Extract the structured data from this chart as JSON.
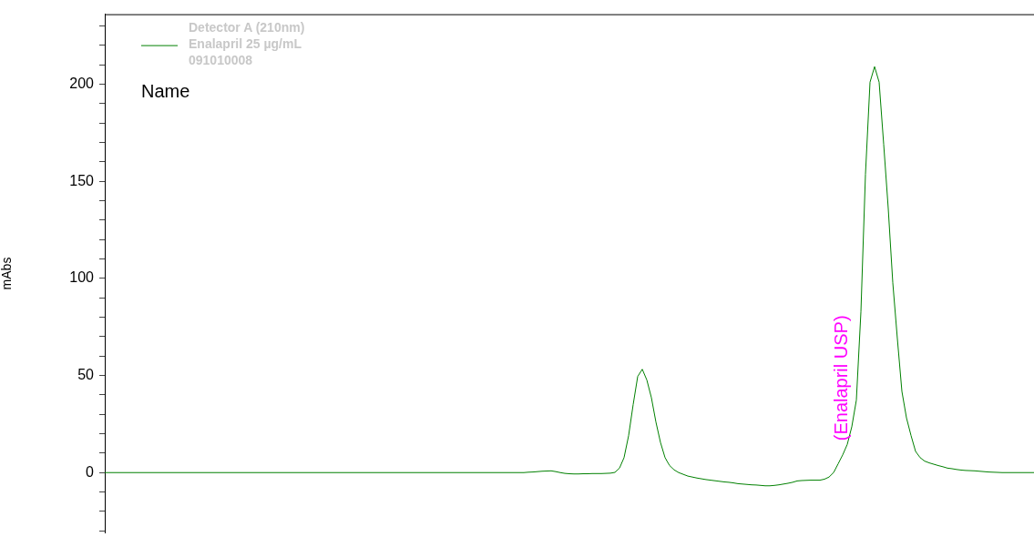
{
  "chart_data": {
    "type": "line",
    "tick_labels": "y",
    "ylabel": "mAbs",
    "legend": "top left",
    "marker": "none",
    "line_style": "solid",
    "grid": false,
    "ylim": [
      -31,
      236
    ],
    "yticks": [
      {
        "value": -30,
        "label": null
      },
      {
        "value": -20,
        "label": null
      },
      {
        "value": -10,
        "label": null
      },
      0,
      {
        "value": 10,
        "label": null
      },
      {
        "value": 20,
        "label": null
      },
      {
        "value": 30,
        "label": null
      },
      {
        "value": 40,
        "label": null
      },
      50,
      {
        "value": 60,
        "label": null
      },
      {
        "value": 70,
        "label": null
      },
      {
        "value": 80,
        "label": null
      },
      {
        "value": 90,
        "label": null
      },
      100,
      {
        "value": 110,
        "label": null
      },
      {
        "value": 120,
        "label": null
      },
      {
        "value": 130,
        "label": null
      },
      {
        "value": 140,
        "label": null
      },
      150,
      {
        "value": 160,
        "label": null
      },
      {
        "value": 170,
        "label": null
      },
      {
        "value": 180,
        "label": null
      },
      {
        "value": 190,
        "label": null
      },
      200,
      {
        "value": 210,
        "label": null
      },
      {
        "value": 220,
        "label": null
      },
      {
        "value": 230,
        "label": null
      }
    ],
    "annotations": [
      "Name",
      "(Enalapril USP)"
    ],
    "categories": [
      null,
      null,
      null,
      null,
      null,
      null,
      null,
      null,
      null,
      null,
      null,
      null,
      null,
      null,
      null,
      null,
      null,
      null,
      null,
      null,
      null,
      null,
      null,
      null,
      null,
      null,
      null,
      null,
      null,
      null,
      null,
      null,
      null,
      null,
      null,
      null,
      null,
      null,
      null,
      null,
      null,
      null,
      null,
      null,
      null,
      null,
      null,
      null,
      null,
      null,
      null,
      null,
      null,
      null,
      null,
      null,
      null,
      null,
      null,
      null,
      null,
      null,
      null,
      null,
      null,
      null,
      null,
      null,
      null,
      null,
      null,
      null,
      null,
      null,
      null,
      null,
      null,
      null,
      null,
      null,
      null,
      null,
      null,
      null,
      null,
      null,
      null,
      null,
      null,
      null,
      null,
      null,
      null,
      null,
      null,
      null,
      null,
      null,
      null,
      null,
      null,
      null,
      null,
      null,
      null,
      null,
      null,
      null,
      null,
      null,
      null,
      null,
      null,
      null,
      null,
      null,
      null,
      null,
      null,
      null,
      null,
      null,
      null,
      null,
      null,
      null,
      null,
      null,
      null,
      null,
      null,
      null,
      null,
      null,
      null,
      null,
      null,
      null,
      null,
      null,
      null,
      null,
      null,
      null,
      null,
      null,
      null,
      null,
      null,
      null,
      null,
      null,
      null,
      null,
      null,
      null,
      null,
      null,
      null,
      null,
      null,
      null,
      null,
      null,
      null,
      null,
      null,
      null,
      null,
      null,
      null,
      null,
      null,
      null,
      null,
      null,
      null,
      null,
      null,
      null,
      null,
      null,
      null,
      null,
      null,
      null,
      null,
      null,
      null,
      null,
      null,
      null,
      null,
      null,
      null,
      null,
      null,
      null,
      null,
      null,
      null,
      null,
      null,
      null,
      null
    ],
    "series": [
      {
        "name": "Detector A (210nm)\nEnalapril 25 µg/mL\n091010008",
        "color": "#008000",
        "values": [
          0,
          0,
          0,
          0,
          0,
          0,
          0,
          0,
          0,
          0,
          0,
          0,
          0,
          0,
          0,
          0,
          0,
          0,
          0,
          0,
          0,
          0,
          0,
          0,
          0,
          0,
          0,
          0,
          0,
          0,
          0,
          0,
          0,
          0,
          0,
          0,
          0,
          0,
          0,
          0,
          0,
          0,
          0,
          0,
          0,
          0,
          0,
          0,
          0,
          0,
          0,
          0,
          0,
          0,
          0,
          0,
          0,
          0,
          0,
          0,
          0,
          0,
          0,
          0,
          0,
          0,
          0,
          0,
          0,
          0,
          0,
          0,
          0,
          0,
          0,
          0,
          0,
          0,
          0,
          0,
          0,
          0,
          0,
          0,
          0,
          0,
          0,
          0,
          0,
          0,
          0,
          0,
          0,
          0.2,
          0.3,
          0.5,
          0.7,
          0.8,
          0.9,
          0.5,
          0,
          -0.4,
          -0.6,
          -0.7,
          -0.7,
          -0.6,
          -0.6,
          -0.5,
          -0.5,
          -0.5,
          -0.4,
          -0.3,
          0.1,
          2.3,
          7.7,
          19,
          35,
          49.5,
          53.2,
          47.7,
          38.6,
          26,
          15.5,
          7.7,
          3.6,
          1.4,
          0,
          -0.9,
          -1.8,
          -2.3,
          -2.8,
          -3.2,
          -3.6,
          -3.9,
          -4.2,
          -4.5,
          -4.8,
          -5,
          -5.3,
          -5.7,
          -5.9,
          -6.1,
          -6.3,
          -6.4,
          -6.6,
          -6.8,
          -6.8,
          -6.6,
          -6.3,
          -5.9,
          -5.5,
          -5,
          -4.3,
          -4.1,
          -4,
          -3.9,
          -3.9,
          -3.9,
          -3.4,
          -2.3,
          0,
          4.5,
          9.1,
          14.5,
          23.6,
          37.3,
          82.7,
          153.6,
          201,
          209,
          201,
          169,
          136,
          97.7,
          69,
          41.8,
          28.2,
          19.1,
          10.9,
          7.7,
          5.9,
          5,
          4.3,
          3.6,
          3,
          2.3,
          2,
          1.6,
          1.3,
          1.1,
          1,
          0.9,
          0.7,
          0.5,
          0.3,
          0.2,
          0.1,
          0,
          0,
          0,
          0,
          0,
          0,
          0,
          0
        ]
      }
    ]
  }
}
